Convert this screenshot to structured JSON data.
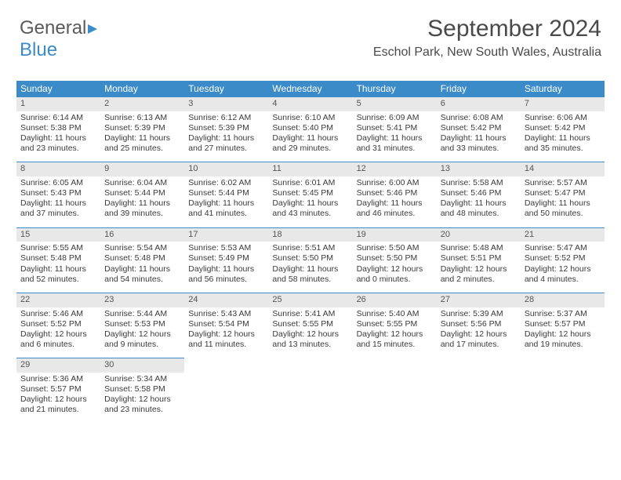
{
  "logo": {
    "text1": "General",
    "text2": "Blue"
  },
  "title": "September 2024",
  "location": "Eschol Park, New South Wales, Australia",
  "weekdays": [
    "Sunday",
    "Monday",
    "Tuesday",
    "Wednesday",
    "Thursday",
    "Friday",
    "Saturday"
  ],
  "colors": {
    "header_bg": "#3b8bc9",
    "daynum_bg": "#e8e8e8",
    "text": "#3a3a3a"
  },
  "days": [
    {
      "n": "1",
      "sr": "6:14 AM",
      "ss": "5:38 PM",
      "dl": "11 hours and 23 minutes."
    },
    {
      "n": "2",
      "sr": "6:13 AM",
      "ss": "5:39 PM",
      "dl": "11 hours and 25 minutes."
    },
    {
      "n": "3",
      "sr": "6:12 AM",
      "ss": "5:39 PM",
      "dl": "11 hours and 27 minutes."
    },
    {
      "n": "4",
      "sr": "6:10 AM",
      "ss": "5:40 PM",
      "dl": "11 hours and 29 minutes."
    },
    {
      "n": "5",
      "sr": "6:09 AM",
      "ss": "5:41 PM",
      "dl": "11 hours and 31 minutes."
    },
    {
      "n": "6",
      "sr": "6:08 AM",
      "ss": "5:42 PM",
      "dl": "11 hours and 33 minutes."
    },
    {
      "n": "7",
      "sr": "6:06 AM",
      "ss": "5:42 PM",
      "dl": "11 hours and 35 minutes."
    },
    {
      "n": "8",
      "sr": "6:05 AM",
      "ss": "5:43 PM",
      "dl": "11 hours and 37 minutes."
    },
    {
      "n": "9",
      "sr": "6:04 AM",
      "ss": "5:44 PM",
      "dl": "11 hours and 39 minutes."
    },
    {
      "n": "10",
      "sr": "6:02 AM",
      "ss": "5:44 PM",
      "dl": "11 hours and 41 minutes."
    },
    {
      "n": "11",
      "sr": "6:01 AM",
      "ss": "5:45 PM",
      "dl": "11 hours and 43 minutes."
    },
    {
      "n": "12",
      "sr": "6:00 AM",
      "ss": "5:46 PM",
      "dl": "11 hours and 46 minutes."
    },
    {
      "n": "13",
      "sr": "5:58 AM",
      "ss": "5:46 PM",
      "dl": "11 hours and 48 minutes."
    },
    {
      "n": "14",
      "sr": "5:57 AM",
      "ss": "5:47 PM",
      "dl": "11 hours and 50 minutes."
    },
    {
      "n": "15",
      "sr": "5:55 AM",
      "ss": "5:48 PM",
      "dl": "11 hours and 52 minutes."
    },
    {
      "n": "16",
      "sr": "5:54 AM",
      "ss": "5:48 PM",
      "dl": "11 hours and 54 minutes."
    },
    {
      "n": "17",
      "sr": "5:53 AM",
      "ss": "5:49 PM",
      "dl": "11 hours and 56 minutes."
    },
    {
      "n": "18",
      "sr": "5:51 AM",
      "ss": "5:50 PM",
      "dl": "11 hours and 58 minutes."
    },
    {
      "n": "19",
      "sr": "5:50 AM",
      "ss": "5:50 PM",
      "dl": "12 hours and 0 minutes."
    },
    {
      "n": "20",
      "sr": "5:48 AM",
      "ss": "5:51 PM",
      "dl": "12 hours and 2 minutes."
    },
    {
      "n": "21",
      "sr": "5:47 AM",
      "ss": "5:52 PM",
      "dl": "12 hours and 4 minutes."
    },
    {
      "n": "22",
      "sr": "5:46 AM",
      "ss": "5:52 PM",
      "dl": "12 hours and 6 minutes."
    },
    {
      "n": "23",
      "sr": "5:44 AM",
      "ss": "5:53 PM",
      "dl": "12 hours and 9 minutes."
    },
    {
      "n": "24",
      "sr": "5:43 AM",
      "ss": "5:54 PM",
      "dl": "12 hours and 11 minutes."
    },
    {
      "n": "25",
      "sr": "5:41 AM",
      "ss": "5:55 PM",
      "dl": "12 hours and 13 minutes."
    },
    {
      "n": "26",
      "sr": "5:40 AM",
      "ss": "5:55 PM",
      "dl": "12 hours and 15 minutes."
    },
    {
      "n": "27",
      "sr": "5:39 AM",
      "ss": "5:56 PM",
      "dl": "12 hours and 17 minutes."
    },
    {
      "n": "28",
      "sr": "5:37 AM",
      "ss": "5:57 PM",
      "dl": "12 hours and 19 minutes."
    },
    {
      "n": "29",
      "sr": "5:36 AM",
      "ss": "5:57 PM",
      "dl": "12 hours and 21 minutes."
    },
    {
      "n": "30",
      "sr": "5:34 AM",
      "ss": "5:58 PM",
      "dl": "12 hours and 23 minutes."
    }
  ],
  "labels": {
    "sunrise": "Sunrise: ",
    "sunset": "Sunset: ",
    "daylight": "Daylight: "
  }
}
